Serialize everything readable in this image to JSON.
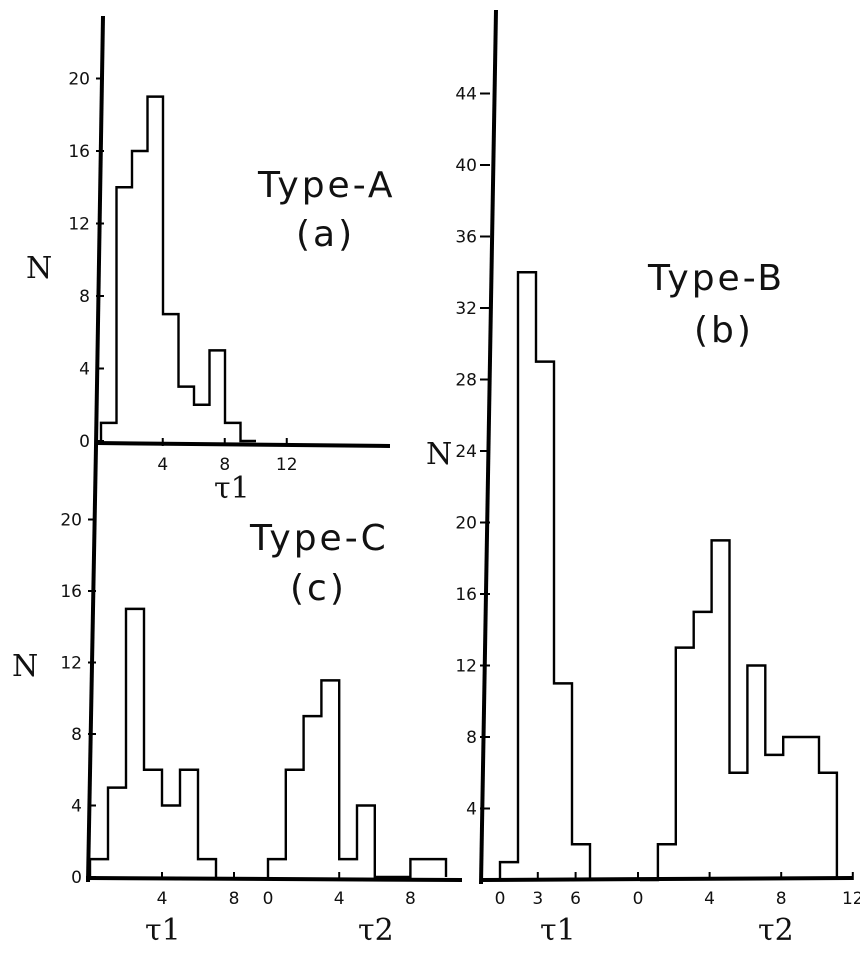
{
  "chart_data": [
    {
      "type": "histogram",
      "panel": "a",
      "title": "Type-A",
      "subtitle": "(a)",
      "ylabel": "N",
      "xlabel": "τ1",
      "ylim": [
        0,
        24
      ],
      "xlim": [
        -0.5,
        15.5
      ],
      "yticks": [
        "0",
        "4",
        "8",
        "12",
        "16",
        "20"
      ],
      "xticks": [
        "4",
        "8",
        "12"
      ],
      "series": [
        {
          "edges": [
            -0.5,
            0.5,
            1.5,
            2.5,
            3.5,
            4.5,
            5.5,
            6.5,
            7.5,
            8.5,
            9.5
          ],
          "counts": [
            1,
            14,
            16,
            19,
            7,
            3,
            2,
            5,
            1,
            0
          ]
        }
      ]
    },
    {
      "type": "histogram",
      "panel": "b",
      "title": "Type-B",
      "subtitle": "(b)",
      "ylabel": "N",
      "ylim": [
        0,
        48
      ],
      "yticks": [
        "4",
        "8",
        "12",
        "16",
        "20",
        "24",
        "28",
        "32",
        "36",
        "40",
        "44"
      ],
      "series": [
        {
          "name": "τ1",
          "xticks": [
            "0",
            "3",
            "6"
          ],
          "edges": [
            -0.75,
            0.75,
            2.25,
            3.75,
            5.25,
            6.75
          ],
          "counts": [
            1,
            34,
            29,
            11,
            2
          ]
        },
        {
          "name": "τ2",
          "xticks": [
            "0",
            "4",
            "8",
            "12"
          ],
          "edges": [
            0,
            1,
            2,
            3,
            4,
            5,
            6,
            7,
            8,
            9,
            10,
            11
          ],
          "counts": [
            0,
            2,
            13,
            15,
            19,
            6,
            12,
            7,
            8,
            8,
            6
          ]
        }
      ]
    },
    {
      "type": "histogram",
      "panel": "c",
      "title": "Type-C",
      "subtitle": "(c)",
      "ylabel": "N",
      "ylim": [
        0,
        24
      ],
      "yticks": [
        "0",
        "4",
        "8",
        "12",
        "16",
        "20"
      ],
      "series": [
        {
          "name": "τ1",
          "xticks": [
            "4",
            "8"
          ],
          "edges": [
            -0.5,
            0.5,
            1.5,
            2.5,
            3.5,
            4.5,
            5.5,
            6.5
          ],
          "counts": [
            1,
            5,
            15,
            6,
            4,
            6,
            1
          ]
        },
        {
          "name": "τ2",
          "xticks": [
            "0",
            "4",
            "8"
          ],
          "edges": [
            0,
            1,
            2,
            3,
            4,
            5,
            6,
            7,
            8,
            9,
            10
          ],
          "counts": [
            1,
            6,
            9,
            11,
            1,
            4,
            0,
            0,
            1,
            1
          ]
        }
      ]
    }
  ]
}
